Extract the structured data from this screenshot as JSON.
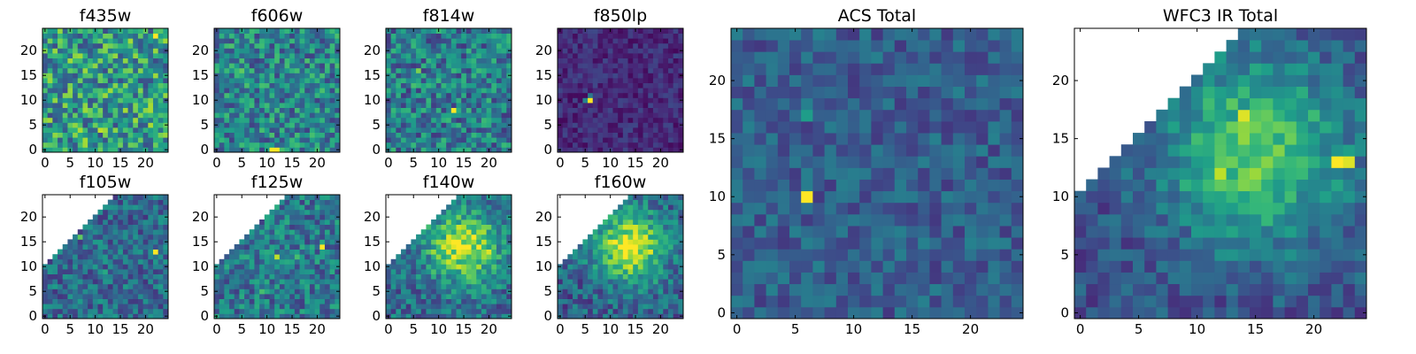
{
  "chart_data": [
    {
      "type": "heatmap",
      "title": "f435w",
      "xlim": [
        0,
        24
      ],
      "ylim": [
        0,
        24
      ],
      "xticks": [
        "0",
        "5",
        "10",
        "15",
        "20"
      ],
      "yticks": [
        "0",
        "5",
        "10",
        "15",
        "20"
      ],
      "colormap": "viridis",
      "seed": 11,
      "mean": 0.55,
      "noise": 0.32,
      "mask": "none",
      "bright_spots": [
        [
          22,
          23,
          1.0
        ],
        [
          11,
          4,
          0.9
        ]
      ]
    },
    {
      "type": "heatmap",
      "title": "f606w",
      "xlim": [
        0,
        24
      ],
      "ylim": [
        0,
        24
      ],
      "xticks": [
        "0",
        "5",
        "10",
        "15",
        "20"
      ],
      "yticks": [
        "0",
        "5",
        "10",
        "15",
        "20"
      ],
      "colormap": "viridis",
      "seed": 23,
      "mean": 0.45,
      "noise": 0.26,
      "mask": "none",
      "bright_spots": [
        [
          11,
          0,
          1.0
        ],
        [
          12,
          0,
          1.0
        ],
        [
          5,
          16,
          0.75
        ]
      ]
    },
    {
      "type": "heatmap",
      "title": "f814w",
      "xlim": [
        0,
        24
      ],
      "ylim": [
        0,
        24
      ],
      "xticks": [
        "0",
        "5",
        "10",
        "15",
        "20"
      ],
      "yticks": [
        "0",
        "5",
        "10",
        "15",
        "20"
      ],
      "colormap": "viridis",
      "seed": 37,
      "mean": 0.42,
      "noise": 0.26,
      "mask": "none",
      "bright_spots": [
        [
          13,
          8,
          1.0
        ],
        [
          6,
          16,
          0.8
        ],
        [
          5,
          13,
          0.7
        ]
      ]
    },
    {
      "type": "heatmap",
      "title": "f850lp",
      "xlim": [
        0,
        24
      ],
      "ylim": [
        0,
        24
      ],
      "xticks": [
        "0",
        "5",
        "10",
        "15",
        "20"
      ],
      "yticks": [
        "0",
        "5",
        "10",
        "15",
        "20"
      ],
      "colormap": "viridis",
      "seed": 41,
      "mean": 0.12,
      "noise": 0.1,
      "mask": "none",
      "bright_spots": [
        [
          6,
          10,
          1.0
        ],
        [
          5,
          10,
          0.45
        ],
        [
          6,
          11,
          0.4
        ]
      ]
    },
    {
      "type": "heatmap",
      "title": "f105w",
      "xlim": [
        0,
        24
      ],
      "ylim": [
        0,
        24
      ],
      "xticks": [
        "0",
        "5",
        "10",
        "15",
        "20"
      ],
      "yticks": [
        "0",
        "5",
        "10",
        "15",
        "20"
      ],
      "colormap": "viridis",
      "seed": 53,
      "mean": 0.35,
      "noise": 0.2,
      "mask": "upper_left_diagonal",
      "bright_spots": [
        [
          22,
          13,
          1.0
        ],
        [
          7,
          16,
          0.75
        ],
        [
          12,
          9,
          0.6
        ]
      ]
    },
    {
      "type": "heatmap",
      "title": "f125w",
      "xlim": [
        0,
        24
      ],
      "ylim": [
        0,
        24
      ],
      "xticks": [
        "0",
        "5",
        "10",
        "15",
        "20"
      ],
      "yticks": [
        "0",
        "5",
        "10",
        "15",
        "20"
      ],
      "colormap": "viridis",
      "seed": 67,
      "mean": 0.4,
      "noise": 0.22,
      "mask": "upper_left_diagonal",
      "bright_spots": [
        [
          21,
          14,
          1.0
        ],
        [
          12,
          12,
          0.9
        ],
        [
          16,
          12,
          0.7
        ],
        [
          9,
          5,
          0.7
        ]
      ]
    },
    {
      "type": "heatmap",
      "title": "f140w",
      "xlim": [
        0,
        24
      ],
      "ylim": [
        0,
        24
      ],
      "xticks": [
        "0",
        "5",
        "10",
        "15",
        "20"
      ],
      "yticks": [
        "0",
        "5",
        "10",
        "15",
        "20"
      ],
      "colormap": "viridis",
      "seed": 79,
      "mean": 0.35,
      "noise": 0.2,
      "mask": "upper_left_diagonal",
      "blob": {
        "cx": 15,
        "cy": 14,
        "r": 7,
        "amp": 0.55
      },
      "bright_spots": [
        [
          14,
          15,
          1.0
        ],
        [
          20,
          13,
          0.95
        ],
        [
          9,
          13,
          0.85
        ]
      ]
    },
    {
      "type": "heatmap",
      "title": "f160w",
      "xlim": [
        0,
        24
      ],
      "ylim": [
        0,
        24
      ],
      "xticks": [
        "0",
        "5",
        "10",
        "15",
        "20"
      ],
      "yticks": [
        "0",
        "5",
        "10",
        "15",
        "20"
      ],
      "colormap": "viridis",
      "seed": 83,
      "mean": 0.3,
      "noise": 0.2,
      "mask": "upper_left_diagonal",
      "blob": {
        "cx": 14,
        "cy": 14,
        "r": 7,
        "amp": 0.65
      },
      "bright_spots": [
        [
          13,
          16,
          1.0
        ],
        [
          15,
          11,
          0.95
        ],
        [
          11,
          13,
          0.9
        ]
      ]
    },
    {
      "type": "heatmap",
      "title": "ACS Total",
      "xlim": [
        0,
        24
      ],
      "ylim": [
        0,
        24
      ],
      "xticks": [
        "0",
        "5",
        "10",
        "15",
        "20"
      ],
      "yticks": [
        "0",
        "5",
        "10",
        "15",
        "20"
      ],
      "colormap": "viridis",
      "seed": 97,
      "mean": 0.3,
      "noise": 0.14,
      "mask": "none",
      "bright_spots": [
        [
          6,
          10,
          1.0
        ],
        [
          6,
          17,
          0.55
        ]
      ]
    },
    {
      "type": "heatmap",
      "title": "WFC3 IR Total",
      "xlim": [
        0,
        24
      ],
      "ylim": [
        0,
        24
      ],
      "xticks": [
        "0",
        "5",
        "10",
        "15",
        "20"
      ],
      "yticks": [
        "0",
        "5",
        "10",
        "15",
        "20"
      ],
      "colormap": "viridis",
      "seed": 101,
      "mean": 0.25,
      "noise": 0.14,
      "mask": "upper_left_diagonal",
      "blob": {
        "cx": 15,
        "cy": 14,
        "r": 8,
        "amp": 0.5
      },
      "bright_spots": [
        [
          22,
          13,
          1.0
        ],
        [
          23,
          13,
          0.95
        ],
        [
          14,
          17,
          0.95
        ],
        [
          12,
          12,
          0.9
        ]
      ]
    }
  ]
}
